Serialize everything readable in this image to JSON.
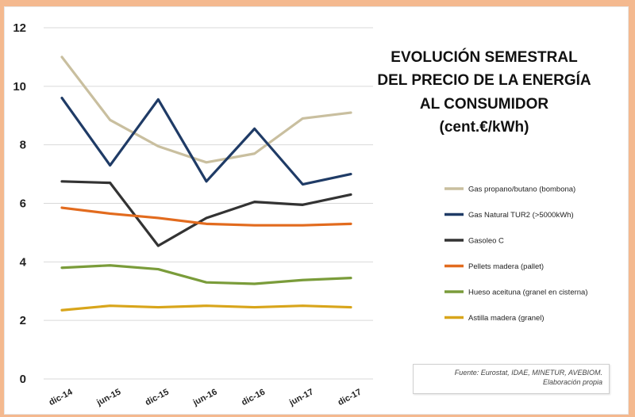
{
  "chart_data": {
    "type": "line",
    "title_lines": [
      "EVOLUCIÓN SEMESTRAL",
      "DEL PRECIO DE LA ENERGÍA",
      "AL CONSUMIDOR",
      "(cent.€/kWh)"
    ],
    "categories": [
      "dic-14",
      "jun-15",
      "dic-15",
      "jun-16",
      "dic-16",
      "jun-17",
      "dic-17"
    ],
    "ylim": [
      0,
      12
    ],
    "yticks": [
      "0",
      "2",
      "4",
      "6",
      "8",
      "10",
      "12"
    ],
    "grid": "horizontal",
    "legend_position": "right",
    "series": [
      {
        "name": "Gas propano/butano (bombona)",
        "color": "#c9bf9f",
        "values": [
          11.0,
          8.85,
          7.95,
          7.4,
          7.7,
          8.9,
          9.1
        ]
      },
      {
        "name": "Gas Natural TUR2 (>5000kWh)",
        "color": "#1f3b66",
        "values": [
          9.6,
          7.3,
          9.55,
          6.75,
          8.55,
          6.65,
          7.0
        ]
      },
      {
        "name": "Gasoleo C",
        "color": "#333333",
        "values": [
          6.75,
          6.7,
          4.55,
          5.5,
          6.05,
          5.95,
          6.3
        ]
      },
      {
        "name": "Pellets madera (pallet)",
        "color": "#e26b1e",
        "values": [
          5.85,
          5.65,
          5.5,
          5.3,
          5.25,
          5.25,
          5.3
        ]
      },
      {
        "name": "Hueso aceituna (granel en cisterna)",
        "color": "#7a9c3a",
        "values": [
          3.8,
          3.88,
          3.75,
          3.3,
          3.25,
          3.38,
          3.45
        ]
      },
      {
        "name": "Astilla madera (granel)",
        "color": "#d8a51b",
        "values": [
          2.35,
          2.5,
          2.45,
          2.5,
          2.45,
          2.5,
          2.45
        ]
      }
    ]
  },
  "source_note": {
    "line1": "Fuente: Eurostat, IDAE, MINETUR, AVEBIOM.",
    "line2": "Elaboración propia"
  }
}
